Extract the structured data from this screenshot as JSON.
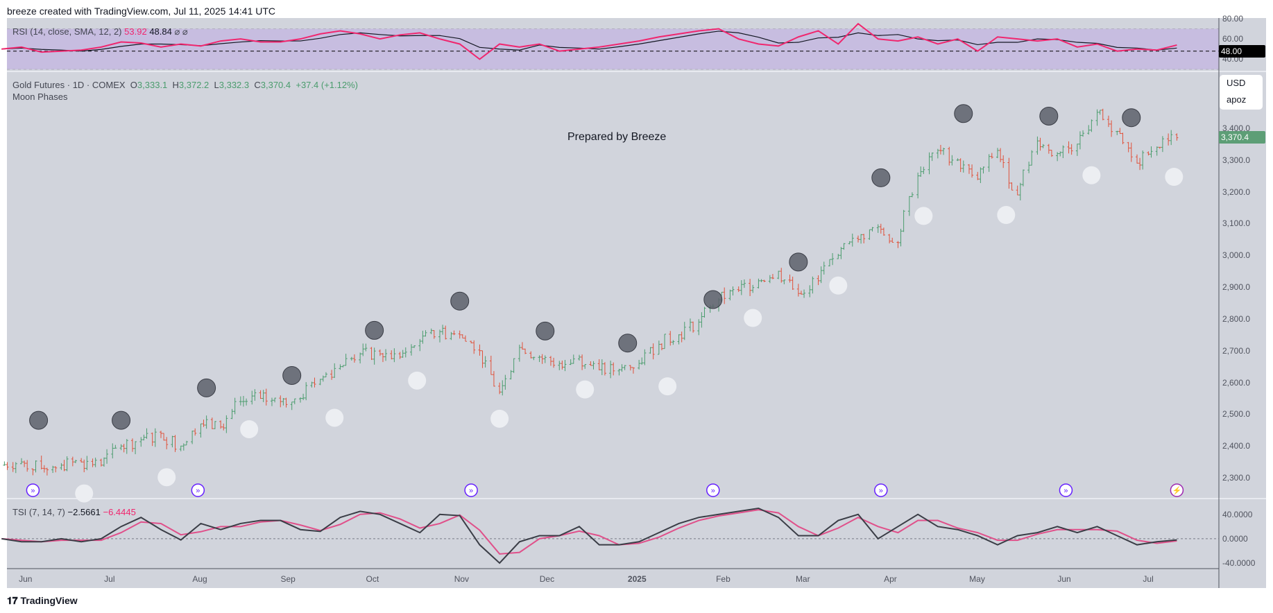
{
  "header": {
    "title": "breeze created with TradingView.com, Jul 11, 2025 14:41 UTC"
  },
  "rsi": {
    "label": "RSI (14, close, SMA, 12, 2)",
    "value": "53.92",
    "sma": "48.84",
    "flags": "⌀ ⌀",
    "ticks": [
      "80.00",
      "60.00",
      "40.00"
    ],
    "tick_values": [
      80,
      60,
      40
    ],
    "marker": "48.00",
    "marker_value": 48,
    "band": [
      70,
      30
    ],
    "values": [
      50,
      52,
      47,
      48,
      49,
      52,
      57,
      56,
      52,
      55,
      53,
      58,
      60,
      57,
      57,
      60,
      65,
      68,
      65,
      60,
      64,
      66,
      60,
      55,
      40,
      55,
      52,
      55,
      48,
      50,
      52,
      55,
      58,
      62,
      65,
      68,
      70,
      60,
      55,
      53,
      62,
      68,
      55,
      75,
      60,
      58,
      62,
      55,
      60,
      48,
      62,
      60,
      58,
      60,
      52,
      55,
      48,
      50,
      49,
      54
    ]
  },
  "main": {
    "symbol": "Gold Futures · 1D · COMEX",
    "o_label": "O",
    "o": "3,333.1",
    "h_label": "H",
    "h": "3,372.2",
    "l_label": "L",
    "l": "3,332.3",
    "c_label": "C",
    "c": "3,370.4",
    "change": "+37.4 (+1.12%)",
    "indicator": "Moon Phases",
    "note": "Prepared by Breeze",
    "currency": "USD",
    "unit": "apoz",
    "last_price": "3,370.4",
    "last_value": 3370.4,
    "ticks": [
      "3,400.0",
      "3,300.0",
      "3,200.0",
      "3,100.0",
      "3,000.0",
      "2,900.0",
      "2,800.0",
      "2,700.0",
      "2,600.0",
      "2,500.0",
      "2,400.0",
      "2,300.0"
    ],
    "tick_values": [
      3400,
      3300,
      3200,
      3100,
      3000,
      2900,
      2800,
      2700,
      2600,
      2500,
      2400,
      2300
    ]
  },
  "chart_data": {
    "type": "ohlc-weekly-approx",
    "up_color": "#4a9c6d",
    "down_color": "#e0513a",
    "dates": [
      "2024-05-24",
      "2024-05-31",
      "2024-06-07",
      "2024-06-14",
      "2024-06-21",
      "2024-06-28",
      "2024-07-05",
      "2024-07-12",
      "2024-07-19",
      "2024-07-26",
      "2024-08-02",
      "2024-08-09",
      "2024-08-16",
      "2024-08-23",
      "2024-08-30",
      "2024-09-06",
      "2024-09-13",
      "2024-09-20",
      "2024-09-27",
      "2024-10-04",
      "2024-10-11",
      "2024-10-18",
      "2024-10-25",
      "2024-11-01",
      "2024-11-08",
      "2024-11-15",
      "2024-11-22",
      "2024-11-29",
      "2024-12-06",
      "2024-12-13",
      "2024-12-20",
      "2024-12-27",
      "2025-01-03",
      "2025-01-10",
      "2025-01-17",
      "2025-01-24",
      "2025-01-31",
      "2025-02-07",
      "2025-02-14",
      "2025-02-21",
      "2025-02-28",
      "2025-03-07",
      "2025-03-14",
      "2025-03-21",
      "2025-03-28",
      "2025-04-04",
      "2025-04-11",
      "2025-04-18",
      "2025-04-25",
      "2025-05-02",
      "2025-05-09",
      "2025-05-16",
      "2025-05-23",
      "2025-05-30",
      "2025-06-06",
      "2025-06-13",
      "2025-06-20",
      "2025-06-27",
      "2025-07-04",
      "2025-07-11"
    ],
    "close": [
      2340,
      2350,
      2330,
      2340,
      2350,
      2340,
      2400,
      2420,
      2440,
      2400,
      2470,
      2460,
      2540,
      2550,
      2540,
      2550,
      2610,
      2650,
      2690,
      2690,
      2680,
      2730,
      2760,
      2750,
      2700,
      2570,
      2710,
      2680,
      2660,
      2680,
      2640,
      2640,
      2660,
      2720,
      2750,
      2790,
      2860,
      2890,
      2920,
      2950,
      2880,
      2920,
      3000,
      3050,
      3090,
      3040,
      3250,
      3330,
      3300,
      3240,
      3330,
      3190,
      3360,
      3320,
      3350,
      3450,
      3390,
      3290,
      3340,
      3370
    ],
    "new_moons": {
      "color": "#5d606b",
      "dates": [
        "2024-06-06",
        "2024-07-05",
        "2024-08-04",
        "2024-09-03",
        "2024-10-02",
        "2024-11-01",
        "2024-12-01",
        "2024-12-30",
        "2025-01-29",
        "2025-02-28",
        "2025-03-29",
        "2025-04-27",
        "2025-05-27",
        "2025-06-25"
      ],
      "prices": [
        2481,
        2481,
        2583,
        2622,
        2764,
        2856,
        2762,
        2724,
        2861,
        2979,
        3244,
        3446,
        3438,
        3433
      ]
    },
    "full_moons": {
      "color": "#eceef2",
      "dates": [
        "2024-06-22",
        "2024-07-21",
        "2024-08-19",
        "2024-09-18",
        "2024-10-17",
        "2024-11-15",
        "2024-12-15",
        "2025-01-13",
        "2025-02-12",
        "2025-03-14",
        "2025-04-13",
        "2025-05-12",
        "2025-06-11",
        "2025-07-10"
      ],
      "prices": [
        2251,
        2302,
        2453,
        2489,
        2606,
        2486,
        2578,
        2588,
        2803,
        2905,
        3124,
        3127,
        3252,
        3247
      ]
    },
    "events": {
      "icon": "event-arrow-icon",
      "last_icon": "lightning-icon",
      "dates": [
        "2024-06-04",
        "2024-08-01",
        "2024-11-05",
        "2025-01-29",
        "2025-03-29",
        "2025-06-02",
        "2025-07-11"
      ]
    }
  },
  "tsi": {
    "label": "TSI (7, 14, 7)",
    "value": "−2.5661",
    "signal": "−6.4445",
    "ticks": [
      "40.0000",
      "0.0000",
      "-40.0000"
    ],
    "tick_values": [
      40,
      0,
      -40
    ],
    "values": [
      0,
      -5,
      -5,
      0,
      -5,
      0,
      20,
      35,
      15,
      -2,
      25,
      15,
      25,
      30,
      30,
      15,
      12,
      35,
      45,
      40,
      25,
      10,
      40,
      38,
      -10,
      -40,
      -5,
      5,
      5,
      20,
      -10,
      -10,
      -5,
      10,
      25,
      35,
      40,
      45,
      50,
      35,
      5,
      5,
      30,
      40,
      0,
      20,
      40,
      20,
      15,
      5,
      -10,
      5,
      10,
      20,
      10,
      20,
      5,
      -10,
      -5,
      -2
    ]
  },
  "time_axis": {
    "labels": [
      "Jun",
      "Jul",
      "Aug",
      "Sep",
      "Oct",
      "Nov",
      "Dec",
      "2025",
      "Feb",
      "Mar",
      "Apr",
      "May",
      "Jun",
      "Jul"
    ],
    "dates": [
      "2024-06-01",
      "2024-07-01",
      "2024-08-01",
      "2024-09-01",
      "2024-10-01",
      "2024-11-01",
      "2024-12-01",
      "2025-01-01",
      "2025-02-01",
      "2025-03-01",
      "2025-04-01",
      "2025-05-01",
      "2025-06-01",
      "2025-07-01"
    ]
  },
  "footer": {
    "brand": "TradingView"
  }
}
